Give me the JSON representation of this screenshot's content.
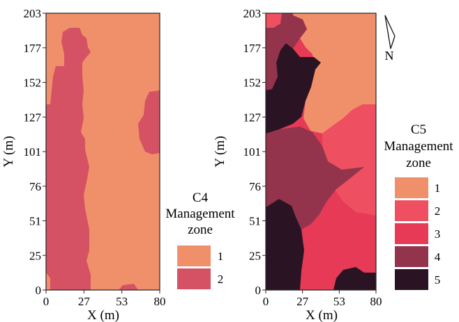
{
  "north_label": "N",
  "maps": [
    {
      "legend_lines": [
        "C4",
        "Management",
        "zone"
      ],
      "x_ticks": [
        "0",
        "27",
        "53",
        "80"
      ],
      "y_ticks": [
        "0",
        "25",
        "51",
        "76",
        "101",
        "127",
        "152",
        "177",
        "203"
      ],
      "xlabel": "X (m)",
      "ylabel": "Y (m)",
      "zones": [
        {
          "label": "1",
          "color": "#f0906a"
        },
        {
          "label": "2",
          "color": "#d55264"
        }
      ]
    },
    {
      "legend_lines": [
        "C5",
        "Management",
        "zone"
      ],
      "x_ticks": [
        "0",
        "27",
        "53",
        "80"
      ],
      "y_ticks": [
        "0",
        "25",
        "51",
        "76",
        "101",
        "127",
        "152",
        "177",
        "203"
      ],
      "xlabel": "X (m)",
      "ylabel": "Y (m)",
      "zones": [
        {
          "label": "1",
          "color": "#f0906a"
        },
        {
          "label": "2",
          "color": "#ee4f61"
        },
        {
          "label": "3",
          "color": "#e63a57"
        },
        {
          "label": "4",
          "color": "#94344c"
        },
        {
          "label": "5",
          "color": "#2a1424"
        }
      ]
    }
  ]
}
